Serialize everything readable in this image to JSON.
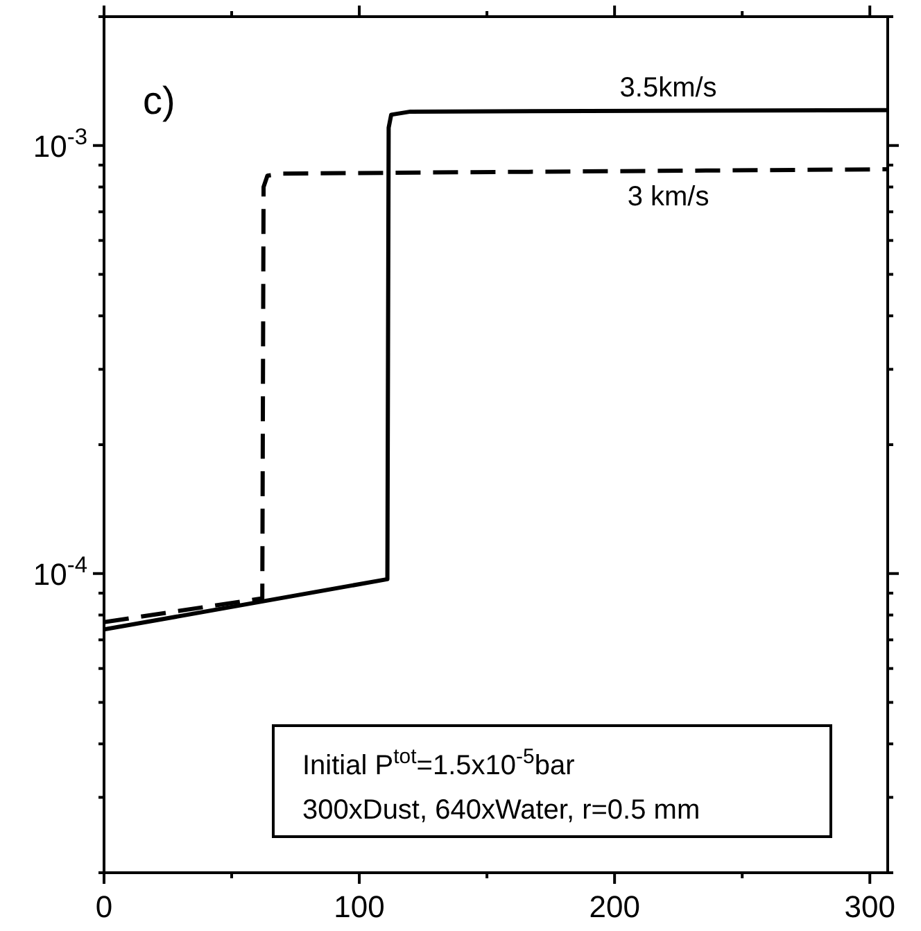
{
  "chart_data": {
    "type": "line",
    "log": "y",
    "grid": false,
    "marker": "none",
    "xlim": [
      0,
      307
    ],
    "xticks": [
      0,
      100,
      200,
      300
    ],
    "ylim": [
      2e-05,
      0.002
    ],
    "yticks": [
      {
        "value": 2e-05,
        "label": null
      },
      {
        "value": 3e-05,
        "label": null
      },
      {
        "value": 4e-05,
        "label": null
      },
      {
        "value": 5e-05,
        "label": null
      },
      {
        "value": 6e-05,
        "label": null
      },
      {
        "value": 7e-05,
        "label": null
      },
      {
        "value": 8e-05,
        "label": null
      },
      {
        "value": 9e-05,
        "label": null
      },
      {
        "value": 0.0001,
        "label": "10$^{-4}$"
      },
      {
        "value": 0.0002,
        "label": null
      },
      {
        "value": 0.0003,
        "label": null
      },
      {
        "value": 0.0004,
        "label": null
      },
      {
        "value": 0.0005,
        "label": null
      },
      {
        "value": 0.0006,
        "label": null
      },
      {
        "value": 0.0007,
        "label": null
      },
      {
        "value": 0.0008,
        "label": null
      },
      {
        "value": 0.0009,
        "label": null
      },
      {
        "value": 0.001,
        "label": "10$^{-3}$"
      },
      {
        "value": 0.002,
        "label": null
      }
    ],
    "series": [
      {
        "name": "3.5km/s",
        "color": "#000000",
        "line_style": "solid",
        "x": [
          0,
          111,
          111.5,
          112.5,
          120,
          307
        ],
        "values": [
          7.4e-05,
          9.7e-05,
          0.0011,
          0.00118,
          0.0012,
          0.00121
        ]
      },
      {
        "name": "3 km/s",
        "color": "#000000",
        "line_style": "dashed",
        "x": [
          0,
          62,
          62.5,
          64,
          70,
          307
        ],
        "values": [
          7.7e-05,
          8.75e-05,
          0.0008,
          0.00085,
          0.00086,
          0.00088
        ]
      }
    ],
    "annotations": [
      "c)",
      "Initial P$^{tot}$=1.5x10$^{-5}$bar\n300xDust, 640xWater, r=0.5 mm"
    ]
  }
}
